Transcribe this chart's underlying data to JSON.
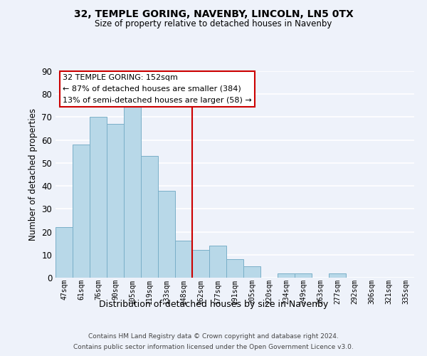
{
  "title": "32, TEMPLE GORING, NAVENBY, LINCOLN, LN5 0TX",
  "subtitle": "Size of property relative to detached houses in Navenby",
  "xlabel": "Distribution of detached houses by size in Navenby",
  "ylabel": "Number of detached properties",
  "bar_labels": [
    "47sqm",
    "61sqm",
    "76sqm",
    "90sqm",
    "105sqm",
    "119sqm",
    "133sqm",
    "148sqm",
    "162sqm",
    "177sqm",
    "191sqm",
    "205sqm",
    "220sqm",
    "234sqm",
    "249sqm",
    "263sqm",
    "277sqm",
    "292sqm",
    "306sqm",
    "321sqm",
    "335sqm"
  ],
  "bar_values": [
    22,
    58,
    70,
    67,
    75,
    53,
    38,
    16,
    12,
    14,
    8,
    5,
    0,
    2,
    2,
    0,
    2,
    0,
    0,
    0,
    0
  ],
  "bar_color": "#b8d8e8",
  "bar_edge_color": "#7aafc8",
  "highlight_line_color": "#cc0000",
  "annotation_title": "32 TEMPLE GORING: 152sqm",
  "annotation_line1": "← 87% of detached houses are smaller (384)",
  "annotation_line2": "13% of semi-detached houses are larger (58) →",
  "annotation_box_color": "#cc0000",
  "ylim": [
    0,
    90
  ],
  "yticks": [
    0,
    10,
    20,
    30,
    40,
    50,
    60,
    70,
    80,
    90
  ],
  "footer_line1": "Contains HM Land Registry data © Crown copyright and database right 2024.",
  "footer_line2": "Contains public sector information licensed under the Open Government Licence v3.0.",
  "background_color": "#eef2fa",
  "grid_color": "#ffffff"
}
